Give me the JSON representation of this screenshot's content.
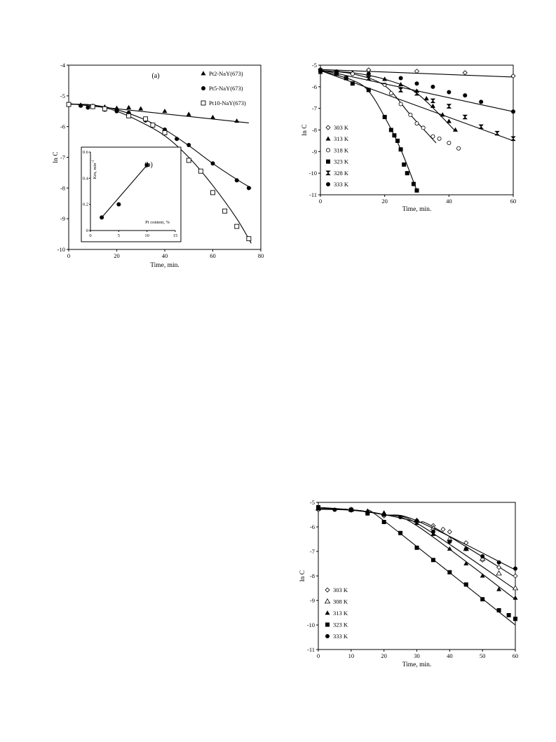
{
  "chart_data": [
    {
      "type": "scatter",
      "panel_label": "(a)",
      "xlabel": "Time, min.",
      "ylabel": "ln C",
      "xlim": [
        0,
        80
      ],
      "ylim": [
        -10,
        -4
      ],
      "xticks": [
        0,
        20,
        40,
        60,
        80
      ],
      "yticks": [
        -4,
        -5,
        -6,
        -7,
        -8,
        -9,
        -10
      ],
      "legend_position": "top-right",
      "series": [
        {
          "name": "Pt2-NaY(673)",
          "marker": "triangle-filled",
          "x": [
            0,
            5,
            10,
            15,
            20,
            25,
            30,
            40,
            50,
            60,
            70
          ],
          "y": [
            -5.28,
            -5.3,
            -5.33,
            -5.36,
            -5.4,
            -5.38,
            -5.42,
            -5.5,
            -5.6,
            -5.7,
            -5.82
          ],
          "fit": {
            "x": [
              0,
              75
            ],
            "y": [
              -5.25,
              -5.88
            ],
            "curve": "line"
          }
        },
        {
          "name": "Pt5-NaY(673)",
          "marker": "circle-filled",
          "x": [
            0,
            5,
            8,
            15,
            20,
            25,
            32,
            40,
            45,
            50,
            60,
            70,
            75
          ],
          "y": [
            -5.28,
            -5.32,
            -5.38,
            -5.45,
            -5.5,
            -5.55,
            -5.8,
            -6.1,
            -6.4,
            -6.6,
            -7.2,
            -7.75,
            -8.0
          ],
          "fit": {
            "x": [
              0,
              10,
              20,
              30,
              40,
              50,
              60,
              70,
              76
            ],
            "y": [
              -5.27,
              -5.3,
              -5.45,
              -5.72,
              -6.1,
              -6.62,
              -7.2,
              -7.72,
              -8.0
            ],
            "curve": "smooth"
          }
        },
        {
          "name": "Pt10-NaY(673)",
          "marker": "square-open",
          "x": [
            0,
            10,
            15,
            25,
            32,
            35,
            40,
            50,
            55,
            60,
            65,
            70,
            75
          ],
          "y": [
            -5.28,
            -5.35,
            -5.42,
            -5.65,
            -5.75,
            -5.95,
            -6.2,
            -7.1,
            -7.45,
            -8.15,
            -8.75,
            -9.25,
            -9.65
          ],
          "fit": {
            "x": [
              0,
              10,
              20,
              30,
              40,
              50,
              60,
              70,
              76
            ],
            "y": [
              -5.27,
              -5.3,
              -5.5,
              -5.85,
              -6.3,
              -7.0,
              -7.92,
              -9.0,
              -9.8
            ],
            "curve": "smooth"
          }
        }
      ],
      "inset": {
        "panel_label": "(b)",
        "xlabel": "Pt content, %",
        "ylabel": "Km, min",
        "ylabel_exponent": "-1",
        "xlim": [
          0,
          15
        ],
        "ylim": [
          0,
          0.6
        ],
        "xticks": [
          0,
          5,
          10,
          15
        ],
        "yticks": [
          0,
          0.2,
          0.4,
          0.6
        ],
        "x": [
          2,
          5,
          10
        ],
        "y": [
          0.1,
          0.2,
          0.5
        ],
        "fit": {
          "x": [
            2,
            10
          ],
          "y": [
            0.1,
            0.5
          ]
        }
      }
    },
    {
      "type": "scatter",
      "xlabel": "Time, min.",
      "ylabel": "ln C",
      "xlim": [
        0,
        60
      ],
      "ylim": [
        -11,
        -5
      ],
      "xticks": [
        0,
        20,
        40,
        60
      ],
      "yticks": [
        -5,
        -6,
        -7,
        -8,
        -9,
        -10,
        -11
      ],
      "legend_position": "bottom-left",
      "series": [
        {
          "name": "303 K",
          "marker": "diamond-open",
          "x": [
            0,
            15,
            30,
            45,
            60
          ],
          "y": [
            -5.2,
            -5.22,
            -5.28,
            -5.35,
            -5.5
          ],
          "fit": {
            "x": [
              0,
              60
            ],
            "y": [
              -5.2,
              -5.55
            ],
            "curve": "smooth"
          }
        },
        {
          "name": "313 K",
          "marker": "triangle-filled",
          "x": [
            0,
            5,
            10,
            15,
            20,
            25,
            30,
            33,
            35,
            38,
            40,
            42
          ],
          "y": [
            -5.25,
            -5.3,
            -5.35,
            -5.45,
            -5.65,
            -5.9,
            -6.2,
            -6.55,
            -6.9,
            -7.3,
            -7.6,
            -8.0
          ],
          "fit": {
            "x": [
              0,
              10,
              20,
              30,
              42
            ],
            "y": [
              -5.25,
              -5.35,
              -5.65,
              -6.3,
              -8.05
            ],
            "curve": "smooth"
          }
        },
        {
          "name": "318 K",
          "marker": "circle-open",
          "x": [
            0,
            5,
            10,
            15,
            20,
            22,
            25,
            28,
            30,
            32,
            35,
            37,
            40,
            43
          ],
          "y": [
            -5.25,
            -5.3,
            -5.4,
            -5.5,
            -5.9,
            -6.3,
            -6.8,
            -7.3,
            -7.7,
            -7.9,
            -8.3,
            -8.4,
            -8.6,
            -8.85
          ],
          "fit": {
            "x": [
              0,
              10,
              20,
              28,
              36
            ],
            "y": [
              -5.25,
              -5.4,
              -5.95,
              -7.3,
              -8.6
            ],
            "curve": "smooth"
          }
        },
        {
          "name": "323 K",
          "marker": "square-filled",
          "x": [
            0,
            5,
            8,
            10,
            15,
            20,
            22,
            23,
            24,
            25,
            26,
            27,
            29,
            30
          ],
          "y": [
            -5.25,
            -5.4,
            -5.6,
            -5.85,
            -6.15,
            -7.4,
            -8.0,
            -8.25,
            -8.5,
            -8.9,
            -9.6,
            -10.0,
            -10.5,
            -10.8
          ],
          "fit": {
            "x": [
              0,
              10,
              15,
              20,
              25,
              30
            ],
            "y": [
              -5.25,
              -5.7,
              -6.2,
              -7.4,
              -8.9,
              -10.8
            ],
            "curve": "smooth"
          }
        },
        {
          "name": "328 K",
          "marker": "hourglass",
          "x": [
            0,
            5,
            15,
            25,
            30,
            35,
            40,
            45,
            50,
            55,
            60
          ],
          "y": [
            -5.3,
            -5.35,
            -5.6,
            -6.15,
            -6.3,
            -6.65,
            -6.9,
            -7.4,
            -7.85,
            -8.15,
            -8.4
          ],
          "fit": {
            "x": [
              0,
              60
            ],
            "y": [
              -5.25,
              -8.5
            ],
            "curve": "line"
          }
        },
        {
          "name": "333 K",
          "marker": "circle-filled",
          "x": [
            0,
            5,
            15,
            25,
            30,
            35,
            40,
            45,
            50,
            60
          ],
          "y": [
            -5.25,
            -5.3,
            -5.4,
            -5.6,
            -5.85,
            -6.0,
            -6.25,
            -6.4,
            -6.7,
            -7.15
          ],
          "fit": {
            "x": [
              0,
              60
            ],
            "y": [
              -5.22,
              -7.15
            ],
            "curve": "line"
          }
        }
      ]
    },
    {
      "type": "scatter",
      "xlabel": "Time, min.",
      "ylabel": "ln C",
      "xlim": [
        0,
        60
      ],
      "ylim": [
        -11,
        -5
      ],
      "xticks": [
        0,
        10,
        20,
        30,
        40,
        50,
        60
      ],
      "yticks": [
        -5,
        -6,
        -7,
        -8,
        -9,
        -10,
        -11
      ],
      "legend_position": "bottom-left",
      "series": [
        {
          "name": "303 K",
          "marker": "diamond-open",
          "x": [
            0,
            10,
            20,
            30,
            35,
            38,
            40,
            45,
            50,
            55,
            60
          ],
          "y": [
            -5.3,
            -5.32,
            -5.55,
            -5.75,
            -5.95,
            -6.1,
            -6.2,
            -6.65,
            -7.35,
            -7.65,
            -8.0
          ],
          "fit": {
            "x": [
              0,
              10,
              20,
              30,
              35,
              60
            ],
            "y": [
              -5.28,
              -5.32,
              -5.5,
              -5.8,
              -6.0,
              -8.05
            ],
            "curve": "smooth"
          }
        },
        {
          "name": "308 K",
          "marker": "triangle-open",
          "x": [
            0,
            10,
            20,
            30,
            35,
            40,
            45,
            50,
            55,
            60
          ],
          "y": [
            -5.25,
            -5.3,
            -5.45,
            -5.75,
            -6.05,
            -6.5,
            -6.9,
            -7.3,
            -7.9,
            -8.5
          ],
          "fit": {
            "x": [
              0,
              10,
              20,
              30,
              60
            ],
            "y": [
              -5.25,
              -5.3,
              -5.5,
              -5.85,
              -8.55
            ],
            "curve": "smooth"
          }
        },
        {
          "name": "313 K",
          "marker": "triangle-filled",
          "x": [
            0,
            10,
            15,
            20,
            30,
            35,
            40,
            45,
            50,
            55,
            60
          ],
          "y": [
            -5.25,
            -5.3,
            -5.35,
            -5.45,
            -5.85,
            -6.3,
            -6.9,
            -7.5,
            -8.0,
            -8.55,
            -8.9
          ],
          "fit": {
            "x": [
              0,
              10,
              20,
              30,
              60
            ],
            "y": [
              -5.25,
              -5.3,
              -5.5,
              -5.95,
              -8.95
            ],
            "curve": "smooth"
          }
        },
        {
          "name": "323 K",
          "marker": "square-filled",
          "x": [
            0,
            10,
            15,
            20,
            25,
            30,
            35,
            40,
            45,
            50,
            55,
            58,
            60
          ],
          "y": [
            -5.2,
            -5.3,
            -5.45,
            -5.8,
            -6.25,
            -6.85,
            -7.35,
            -7.85,
            -8.35,
            -8.95,
            -9.4,
            -9.6,
            -9.75
          ],
          "fit": {
            "x": [
              0,
              10,
              15,
              20,
              60
            ],
            "y": [
              -5.2,
              -5.3,
              -5.4,
              -5.75,
              -10.0
            ],
            "curve": "smooth"
          }
        },
        {
          "name": "333 K",
          "marker": "circle-filled",
          "x": [
            0,
            5,
            10,
            15,
            20,
            25,
            30,
            35,
            40,
            45,
            50,
            55,
            60
          ],
          "y": [
            -5.25,
            -5.3,
            -5.32,
            -5.45,
            -5.5,
            -5.6,
            -5.75,
            -6.2,
            -6.6,
            -6.9,
            -7.2,
            -7.45,
            -7.7
          ],
          "fit": {
            "x": [
              0,
              10,
              20,
              30,
              60
            ],
            "y": [
              -5.25,
              -5.3,
              -5.5,
              -5.75,
              -7.75
            ],
            "curve": "smooth"
          }
        }
      ]
    }
  ]
}
